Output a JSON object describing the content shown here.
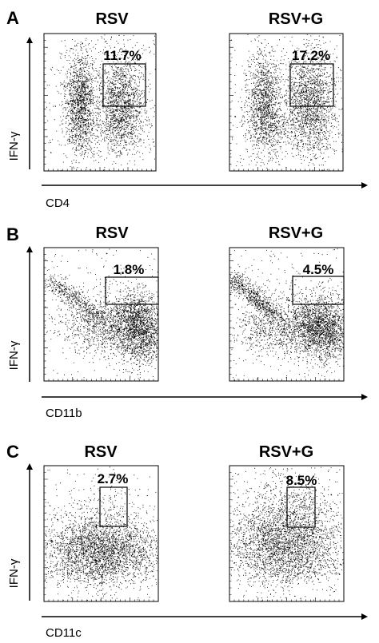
{
  "chart_data": [
    {
      "type": "scatter",
      "panel": "A",
      "xlabel": "CD4",
      "ylabel": "IFN-γ",
      "plots": [
        {
          "title": "RSV",
          "gate_label": "11.7%",
          "gate_percent": 11.7
        },
        {
          "title": "RSV+G",
          "gate_label": "17.2%",
          "gate_percent": 17.2
        }
      ]
    },
    {
      "type": "scatter",
      "panel": "B",
      "xlabel": "CD11b",
      "ylabel": "IFN-γ",
      "plots": [
        {
          "title": "RSV",
          "gate_label": "1.8%",
          "gate_percent": 1.8
        },
        {
          "title": "RSV+G",
          "gate_label": "4.5%",
          "gate_percent": 4.5
        }
      ]
    },
    {
      "type": "scatter",
      "panel": "C",
      "xlabel": "CD11c",
      "ylabel": "IFN-γ",
      "plots": [
        {
          "title": "RSV",
          "gate_label": "2.7%",
          "gate_percent": 2.7
        },
        {
          "title": "RSV+G",
          "gate_label": "8.5%",
          "gate_percent": 8.5
        }
      ]
    }
  ]
}
